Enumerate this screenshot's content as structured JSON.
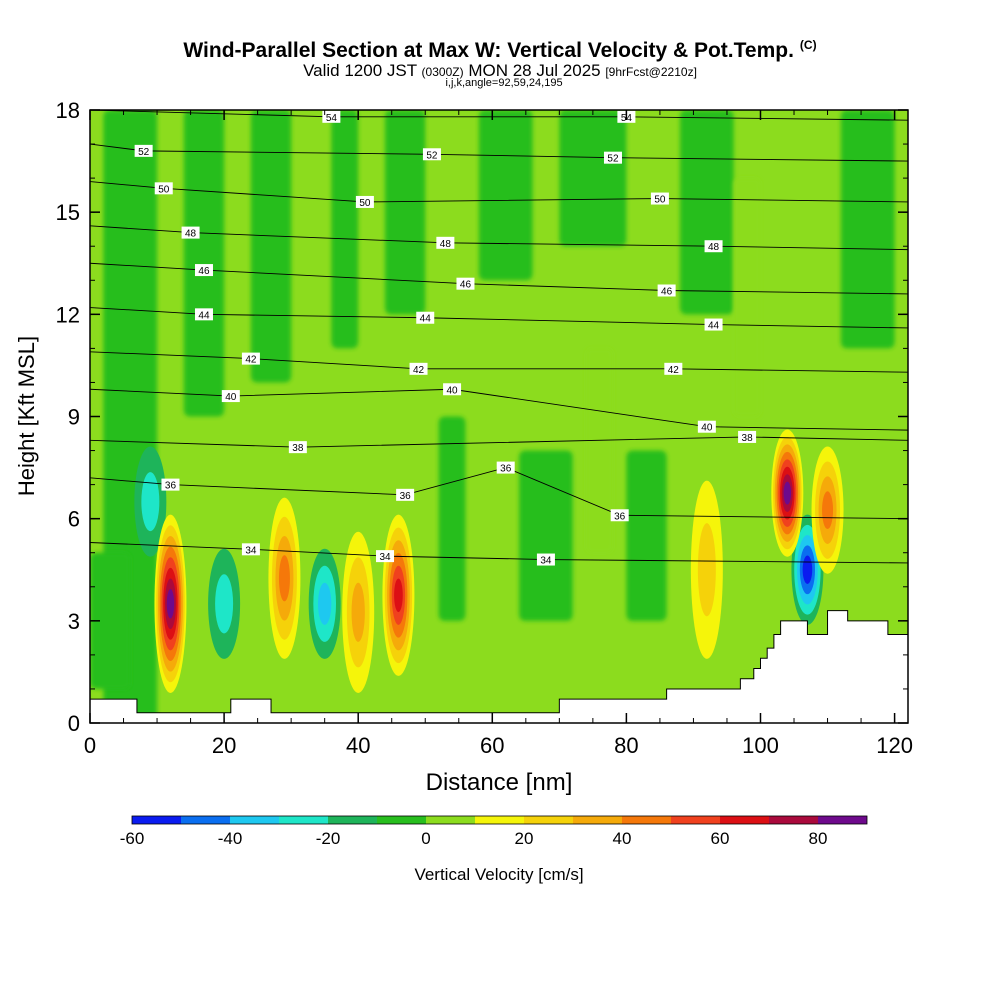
{
  "title": "Wind-Parallel Section at Max W: Vertical Velocity & Pot.Temp.",
  "title_tag": "(C)",
  "subtitle_main_1": "Valid 1200 JST",
  "subtitle_small_1": "(0300Z)",
  "subtitle_main_2": "MON 28 Jul 2025",
  "subtitle_small_2": "[9hrFcst@2210z]",
  "subtitle2": "i,j,k,angle=92,59,24,195",
  "chart_data": {
    "type": "heatmap",
    "xlabel": "Distance [nm]",
    "ylabel": "Height [Kft MSL]",
    "xlim": [
      0,
      122
    ],
    "ylim": [
      0,
      18
    ],
    "x_ticks": [
      0,
      20,
      40,
      60,
      80,
      100,
      120
    ],
    "y_ticks": [
      0,
      3,
      6,
      9,
      12,
      15,
      18
    ],
    "colorbar": {
      "label": "Vertical Velocity [cm/s]",
      "boundaries": [
        -60,
        -50,
        -40,
        -30,
        -20,
        -10,
        0,
        10,
        20,
        30,
        40,
        50,
        60,
        70,
        80,
        90
      ],
      "tick_labels": [
        "-60",
        "-40",
        "-20",
        "0",
        "20",
        "40",
        "60",
        "80"
      ],
      "tick_values": [
        -60,
        -40,
        -20,
        0,
        20,
        40,
        60,
        80
      ],
      "colors": [
        "#0a1bf0",
        "#0a6ef0",
        "#1ec8f0",
        "#1ee6c8",
        "#1eb45a",
        "#28be1e",
        "#8cdc1e",
        "#f5f50a",
        "#f5d20a",
        "#f5aa0a",
        "#f5780a",
        "#f0411e",
        "#dc0f14",
        "#aa0a3c",
        "#6e0a8c"
      ]
    },
    "background_w_value": 5,
    "updraft_cores": [
      {
        "x": 12,
        "z_bottom": 1,
        "z_top": 6,
        "w_max": 85
      },
      {
        "x": 29,
        "z_bottom": 2,
        "z_top": 6.5,
        "w_max": 45
      },
      {
        "x": 40,
        "z_bottom": 1,
        "z_top": 5.5,
        "w_max": 35
      },
      {
        "x": 46,
        "z_bottom": 1.5,
        "z_top": 6,
        "w_max": 65
      },
      {
        "x": 104,
        "z_bottom": 5,
        "z_top": 8.5,
        "w_max": 85
      },
      {
        "x": 110,
        "z_bottom": 4.5,
        "z_top": 8,
        "w_max": 45
      },
      {
        "x": 92,
        "z_bottom": 2,
        "z_top": 7,
        "w_max": 25
      }
    ],
    "downdraft_cores": [
      {
        "x": 9,
        "z_bottom": 5,
        "z_top": 8,
        "w_min": -25
      },
      {
        "x": 20,
        "z_bottom": 2,
        "z_top": 5,
        "w_min": -25
      },
      {
        "x": 35,
        "z_bottom": 2,
        "z_top": 5,
        "w_min": -30
      },
      {
        "x": 107,
        "z_bottom": 3,
        "z_top": 6,
        "w_min": -55
      }
    ],
    "isentrope_labels": [
      {
        "x": 36,
        "z": 17.8,
        "value": "54"
      },
      {
        "x": 80,
        "z": 17.8,
        "value": "54"
      },
      {
        "x": 8,
        "z": 16.8,
        "value": "52"
      },
      {
        "x": 51,
        "z": 16.7,
        "value": "52"
      },
      {
        "x": 78,
        "z": 16.6,
        "value": "52"
      },
      {
        "x": 11,
        "z": 15.7,
        "value": "50"
      },
      {
        "x": 41,
        "z": 15.3,
        "value": "50"
      },
      {
        "x": 85,
        "z": 15.4,
        "value": "50"
      },
      {
        "x": 15,
        "z": 14.4,
        "value": "48"
      },
      {
        "x": 53,
        "z": 14.1,
        "value": "48"
      },
      {
        "x": 93,
        "z": 14.0,
        "value": "48"
      },
      {
        "x": 17,
        "z": 13.3,
        "value": "46"
      },
      {
        "x": 56,
        "z": 12.9,
        "value": "46"
      },
      {
        "x": 86,
        "z": 12.7,
        "value": "46"
      },
      {
        "x": 17,
        "z": 12.0,
        "value": "44"
      },
      {
        "x": 50,
        "z": 11.9,
        "value": "44"
      },
      {
        "x": 93,
        "z": 11.7,
        "value": "44"
      },
      {
        "x": 24,
        "z": 10.7,
        "value": "42"
      },
      {
        "x": 49,
        "z": 10.4,
        "value": "42"
      },
      {
        "x": 87,
        "z": 10.4,
        "value": "42"
      },
      {
        "x": 21,
        "z": 9.6,
        "value": "40"
      },
      {
        "x": 54,
        "z": 9.8,
        "value": "40"
      },
      {
        "x": 92,
        "z": 8.7,
        "value": "40"
      },
      {
        "x": 31,
        "z": 8.1,
        "value": "38"
      },
      {
        "x": 98,
        "z": 8.4,
        "value": "38"
      },
      {
        "x": 12,
        "z": 7.0,
        "value": "36"
      },
      {
        "x": 47,
        "z": 6.7,
        "value": "36"
      },
      {
        "x": 62,
        "z": 7.5,
        "value": "36"
      },
      {
        "x": 79,
        "z": 6.1,
        "value": "36"
      },
      {
        "x": 24,
        "z": 5.1,
        "value": "34"
      },
      {
        "x": 44,
        "z": 4.9,
        "value": "34"
      },
      {
        "x": 68,
        "z": 4.8,
        "value": "34"
      }
    ],
    "terrain": [
      [
        0,
        0.7
      ],
      [
        7,
        0.7
      ],
      [
        7,
        0.3
      ],
      [
        21,
        0.3
      ],
      [
        21,
        0.7
      ],
      [
        27,
        0.7
      ],
      [
        27,
        0.3
      ],
      [
        70,
        0.3
      ],
      [
        70,
        0.7
      ],
      [
        86,
        0.7
      ],
      [
        86,
        1.0
      ],
      [
        97,
        1.0
      ],
      [
        97,
        1.3
      ],
      [
        99,
        1.3
      ],
      [
        99,
        1.6
      ],
      [
        100,
        1.6
      ],
      [
        100,
        1.9
      ],
      [
        101,
        1.9
      ],
      [
        101,
        2.2
      ],
      [
        102,
        2.2
      ],
      [
        102,
        2.6
      ],
      [
        103,
        2.6
      ],
      [
        103,
        3.0
      ],
      [
        107,
        3.0
      ],
      [
        107,
        2.6
      ],
      [
        110,
        2.6
      ],
      [
        110,
        3.3
      ],
      [
        113,
        3.3
      ],
      [
        113,
        3.0
      ],
      [
        119,
        3.0
      ],
      [
        119,
        2.6
      ],
      [
        122,
        2.6
      ]
    ]
  }
}
